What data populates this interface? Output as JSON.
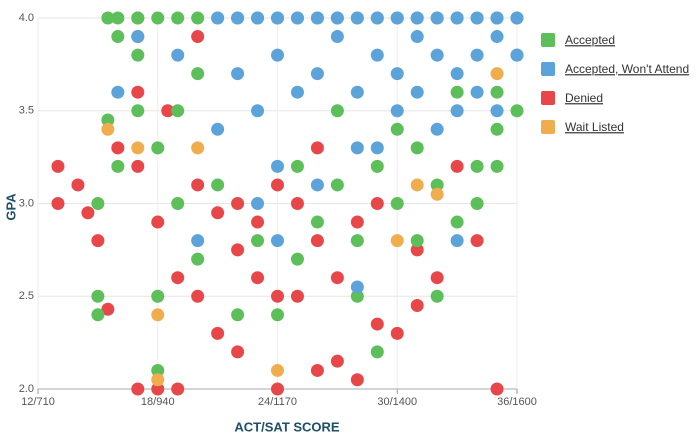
{
  "chart_data": {
    "type": "scatter",
    "x_label": "ACT/SAT SCORE",
    "y_label": "GPA",
    "xlim": [
      12,
      36
    ],
    "ylim": [
      2,
      4
    ],
    "xticks": [
      {
        "value": 12,
        "label": "12/710"
      },
      {
        "value": 18,
        "label": "18/940"
      },
      {
        "value": 24,
        "label": "24/1170"
      },
      {
        "value": 30,
        "label": "30/1400"
      },
      {
        "value": 36,
        "label": "36/1600"
      }
    ],
    "yticks": [
      {
        "value": 2,
        "label": "2.0"
      },
      2.5,
      {
        "value": 3,
        "label": "3.0"
      },
      3.5,
      {
        "value": 4,
        "label": "4.0"
      }
    ],
    "grid": true,
    "legend": "right",
    "series": [
      {
        "name": "Denied",
        "color": "#e8474a",
        "x": [
          13,
          13,
          14,
          14.5,
          15,
          15.5,
          17,
          18,
          19,
          16,
          17,
          17,
          17,
          18,
          19,
          20,
          20,
          21,
          21,
          22,
          22,
          22,
          23,
          23,
          24,
          24,
          25,
          25,
          26,
          26,
          27,
          27,
          28,
          28,
          29,
          30,
          31,
          31,
          32,
          33,
          34,
          35,
          20,
          24,
          26,
          29,
          17,
          18.5
        ],
        "values": [
          3.2,
          3.0,
          3.1,
          2.95,
          2.8,
          2.43,
          2.0,
          2.0,
          2.0,
          3.3,
          3.6,
          3.9,
          4.0,
          2.9,
          2.6,
          2.5,
          3.1,
          2.3,
          2.95,
          2.2,
          2.75,
          3.0,
          2.6,
          2.9,
          2.0,
          2.5,
          3.0,
          2.5,
          2.8,
          2.1,
          2.15,
          2.6,
          2.05,
          2.9,
          2.35,
          2.3,
          2.45,
          2.75,
          2.6,
          3.2,
          2.8,
          2.0,
          3.9,
          3.1,
          3.3,
          3.0,
          3.2,
          3.5
        ]
      },
      {
        "name": "Accepted",
        "color": "#5cbf5a",
        "x": [
          15.5,
          16,
          17,
          18,
          19,
          20,
          21,
          22,
          23,
          24,
          25,
          26,
          27,
          28,
          29,
          30,
          31,
          32,
          33,
          34,
          35,
          36,
          15,
          15,
          16,
          15,
          15.5,
          17,
          18,
          18,
          18,
          19,
          19,
          20,
          21,
          22,
          23,
          24,
          25,
          25,
          26,
          27,
          28,
          28,
          29,
          29,
          30,
          31,
          31,
          32,
          32,
          33,
          33,
          34,
          35,
          35,
          36,
          36,
          17,
          16,
          20,
          34,
          35,
          30,
          27
        ],
        "values": [
          4.0,
          4.0,
          4.0,
          4.0,
          4.0,
          4.0,
          4.0,
          4.0,
          4.0,
          4.0,
          4.0,
          4.0,
          4.0,
          4.0,
          4.0,
          4.0,
          4.0,
          4.0,
          4.0,
          4.0,
          4.0,
          4.0,
          2.5,
          2.4,
          3.2,
          3.0,
          3.45,
          3.5,
          2.1,
          2.5,
          3.3,
          3.5,
          3.0,
          2.7,
          3.1,
          2.4,
          2.8,
          2.4,
          2.7,
          3.2,
          2.9,
          3.1,
          2.8,
          2.5,
          2.2,
          3.2,
          3.0,
          2.8,
          3.3,
          2.5,
          3.1,
          3.6,
          2.9,
          3.2,
          3.4,
          3.6,
          3.5,
          3.8,
          3.8,
          3.9,
          3.7,
          3.0,
          3.2,
          3.4,
          3.5
        ]
      },
      {
        "name": "Accepted, Won't Attend",
        "color": "#5ca3da",
        "x": [
          21,
          22,
          23,
          24,
          25,
          26,
          27,
          28,
          29,
          30,
          31,
          32,
          33,
          34,
          35,
          22,
          23,
          24,
          25,
          26,
          27,
          28,
          29,
          30,
          31,
          32,
          33,
          34,
          35,
          30,
          31,
          32,
          33,
          34,
          29,
          24,
          21,
          23,
          26,
          28,
          17,
          16,
          20,
          24,
          28,
          33,
          19,
          35,
          36,
          36
        ],
        "values": [
          4.0,
          4.0,
          4.0,
          4.0,
          4.0,
          4.0,
          4.0,
          4.0,
          4.0,
          4.0,
          4.0,
          4.0,
          4.0,
          4.0,
          4.0,
          3.7,
          3.5,
          3.8,
          3.6,
          3.7,
          3.9,
          3.6,
          3.8,
          3.7,
          3.9,
          3.8,
          3.7,
          3.6,
          3.9,
          3.5,
          3.6,
          3.4,
          3.5,
          3.8,
          3.3,
          3.2,
          3.4,
          3.0,
          3.1,
          3.3,
          3.9,
          3.6,
          2.8,
          2.8,
          2.55,
          2.8,
          3.8,
          3.5,
          3.8,
          4.0
        ]
      },
      {
        "name": "Wait Listed",
        "color": "#f0ad4e",
        "x": [
          15.5,
          17,
          18,
          18,
          20,
          24,
          30,
          31,
          32,
          35
        ],
        "values": [
          3.4,
          3.3,
          2.4,
          2.05,
          3.3,
          2.1,
          2.8,
          3.1,
          3.05,
          3.7
        ]
      }
    ]
  }
}
